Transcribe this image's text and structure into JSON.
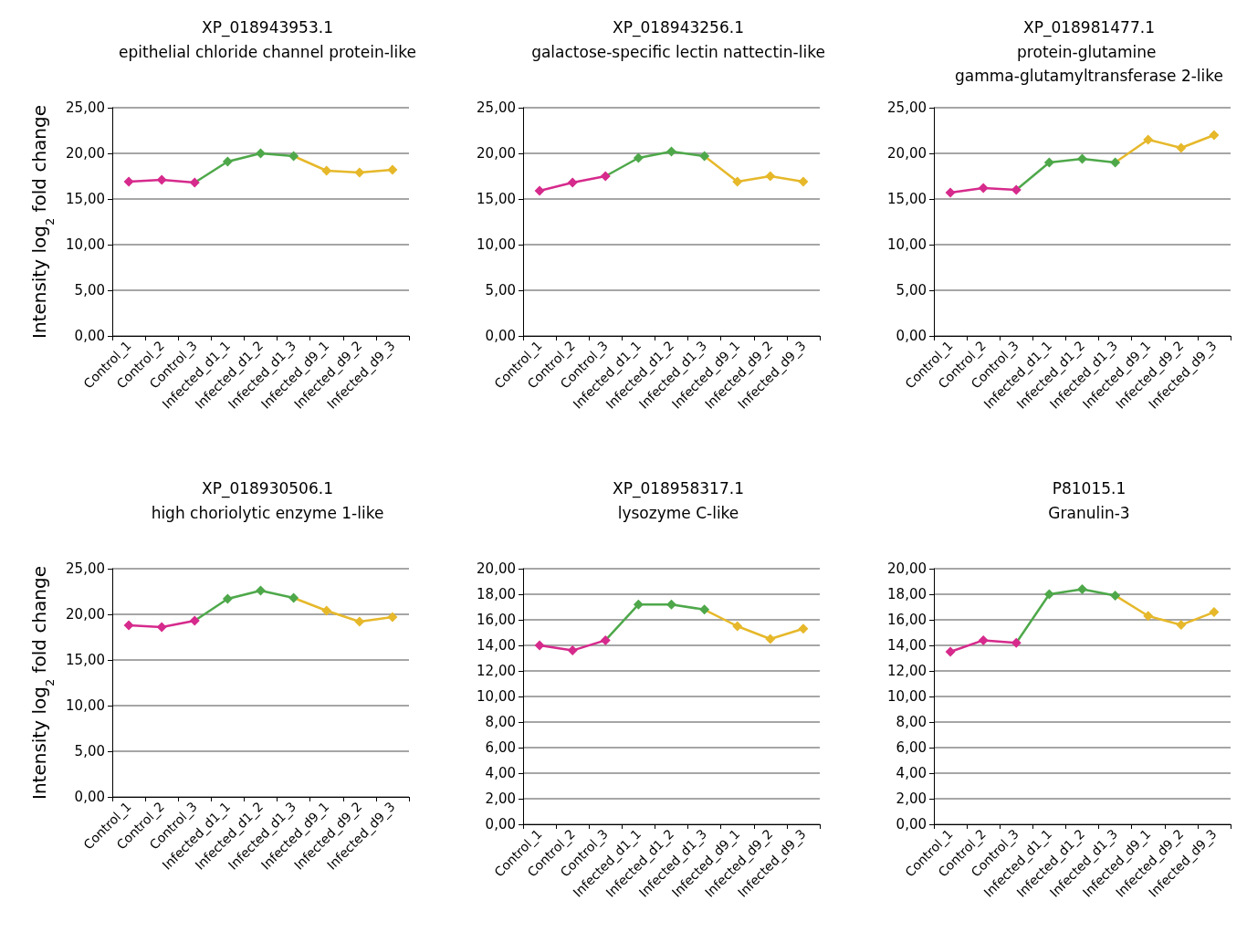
{
  "chart_data": [
    {
      "type": "line",
      "title": "XP_018943953.1",
      "subtitle": "epithelial chloride channel protein-like",
      "ylabel": "Intensity log$_{2}$ fold change",
      "categories": [
        "Control_1",
        "Control_2",
        "Control_3",
        "Infected_d1_1",
        "Infected_d1_2",
        "Infected_d1_3",
        "Infected_d9_1",
        "Infected_d9_2",
        "Infected_d9_3"
      ],
      "ylim": [
        0,
        25
      ],
      "yticks": [
        {
          "value": 0,
          "label": "0,00"
        },
        {
          "value": 5,
          "label": "5,00"
        },
        {
          "value": 10,
          "label": "10,00"
        },
        {
          "value": 15,
          "label": "15,00"
        },
        {
          "value": 20,
          "label": "20,00"
        },
        {
          "value": 25,
          "label": "25,00"
        }
      ],
      "grid": "y",
      "marker": "diamond",
      "line_style": "solid",
      "values": [
        16.9,
        17.1,
        16.8,
        19.1,
        20.0,
        19.7,
        18.1,
        17.9,
        18.2
      ],
      "colors": [
        "#d62a8c",
        "#d62a8c",
        "#d62a8c",
        "#4ea84a",
        "#4ea84a",
        "#4ea84a",
        "#e6b82a",
        "#e6b82a",
        "#e6b82a"
      ]
    },
    {
      "type": "line",
      "title": "XP_018943256.1",
      "subtitle": "galactose-specific lectin nattectin-like",
      "categories": [
        "Control_1",
        "Control_2",
        "Control_3",
        "Infected_d1_1",
        "Infected_d1_2",
        "Infected_d1_3",
        "Infected_d9_1",
        "Infected_d9_2",
        "Infected_d9_3"
      ],
      "ylim": [
        0,
        25
      ],
      "yticks": [
        {
          "value": 0,
          "label": "0,00"
        },
        {
          "value": 5,
          "label": "5,00"
        },
        {
          "value": 10,
          "label": "10,00"
        },
        {
          "value": 15,
          "label": "15,00"
        },
        {
          "value": 20,
          "label": "20,00"
        },
        {
          "value": 25,
          "label": "25,00"
        }
      ],
      "grid": "y",
      "marker": "diamond",
      "line_style": "solid",
      "values": [
        15.9,
        16.8,
        17.5,
        19.5,
        20.2,
        19.7,
        16.9,
        17.5,
        16.9
      ],
      "colors": [
        "#d62a8c",
        "#d62a8c",
        "#d62a8c",
        "#4ea84a",
        "#4ea84a",
        "#4ea84a",
        "#e6b82a",
        "#e6b82a",
        "#e6b82a"
      ]
    },
    {
      "type": "line",
      "title": "XP_018981477.1",
      "subtitle": "protein-glutamine gamma-glutamyltransferase 2-like",
      "categories": [
        "Control_1",
        "Control_2",
        "Control_3",
        "Infected_d1_1",
        "Infected_d1_2",
        "Infected_d1_3",
        "Infected_d9_1",
        "Infected_d9_2",
        "Infected_d9_3"
      ],
      "ylim": [
        0,
        25
      ],
      "yticks": [
        {
          "value": 0,
          "label": "0,00"
        },
        {
          "value": 5,
          "label": "5,00"
        },
        {
          "value": 10,
          "label": "10,00"
        },
        {
          "value": 15,
          "label": "15,00"
        },
        {
          "value": 20,
          "label": "20,00"
        },
        {
          "value": 25,
          "label": "25,00"
        }
      ],
      "grid": "y",
      "marker": "diamond",
      "line_style": "solid",
      "values": [
        15.7,
        16.2,
        16.0,
        19.0,
        19.4,
        19.0,
        21.5,
        20.6,
        22.0
      ],
      "colors": [
        "#d62a8c",
        "#d62a8c",
        "#d62a8c",
        "#4ea84a",
        "#4ea84a",
        "#4ea84a",
        "#e6b82a",
        "#e6b82a",
        "#e6b82a"
      ]
    },
    {
      "type": "line",
      "title": "XP_018930506.1",
      "subtitle": "high choriolytic enzyme 1-like",
      "ylabel": "Intensity log$_{2}$ fold change",
      "categories": [
        "Control_1",
        "Control_2",
        "Control_3",
        "Infected_d1_1",
        "Infected_d1_2",
        "Infected_d1_3",
        "Infected_d9_1",
        "Infected_d9_2",
        "Infected_d9_3"
      ],
      "ylim": [
        0,
        25
      ],
      "yticks": [
        {
          "value": 0,
          "label": "0,00"
        },
        {
          "value": 5,
          "label": "5,00"
        },
        {
          "value": 10,
          "label": "10,00"
        },
        {
          "value": 15,
          "label": "15,00"
        },
        {
          "value": 20,
          "label": "20,00"
        },
        {
          "value": 25,
          "label": "25,00"
        }
      ],
      "grid": "y",
      "marker": "diamond",
      "line_style": "solid",
      "values": [
        18.8,
        18.6,
        19.3,
        21.7,
        22.6,
        21.8,
        20.4,
        19.2,
        19.7
      ],
      "colors": [
        "#d62a8c",
        "#d62a8c",
        "#d62a8c",
        "#4ea84a",
        "#4ea84a",
        "#4ea84a",
        "#e6b82a",
        "#e6b82a",
        "#e6b82a"
      ]
    },
    {
      "type": "line",
      "title": "XP_018958317.1",
      "subtitle": "lysozyme C-like",
      "categories": [
        "Control_1",
        "Control_2",
        "Control_3",
        "Infected_d1_1",
        "Infected_d1_2",
        "Infected_d1_3",
        "Infected_d9_1",
        "Infected_d9_2",
        "Infected_d9_3"
      ],
      "ylim": [
        0,
        20
      ],
      "yticks": [
        {
          "value": 0,
          "label": "0,00"
        },
        {
          "value": 2,
          "label": "2,00"
        },
        {
          "value": 4,
          "label": "4,00"
        },
        {
          "value": 6,
          "label": "6,00"
        },
        {
          "value": 8,
          "label": "8,00"
        },
        {
          "value": 10,
          "label": "10,00"
        },
        {
          "value": 12,
          "label": "12,00"
        },
        {
          "value": 14,
          "label": "14,00"
        },
        {
          "value": 16,
          "label": "16,00"
        },
        {
          "value": 18,
          "label": "18,00"
        },
        {
          "value": 20,
          "label": "20,00"
        }
      ],
      "grid": "y",
      "marker": "diamond",
      "line_style": "solid",
      "values": [
        14.0,
        13.6,
        14.4,
        17.2,
        17.2,
        16.8,
        15.5,
        14.5,
        15.3
      ],
      "colors": [
        "#d62a8c",
        "#d62a8c",
        "#d62a8c",
        "#4ea84a",
        "#4ea84a",
        "#4ea84a",
        "#e6b82a",
        "#e6b82a",
        "#e6b82a"
      ]
    },
    {
      "type": "line",
      "title": "P81015.1",
      "subtitle": "Granulin-3",
      "categories": [
        "Control_1",
        "Control_2",
        "Control_3",
        "Infected_d1_1",
        "Infected_d1_2",
        "Infected_d1_3",
        "Infected_d9_1",
        "Infected_d9_2",
        "Infected_d9_3"
      ],
      "ylim": [
        0,
        20
      ],
      "yticks": [
        {
          "value": 0,
          "label": "0,00"
        },
        {
          "value": 2,
          "label": "2,00"
        },
        {
          "value": 4,
          "label": "4,00"
        },
        {
          "value": 6,
          "label": "6,00"
        },
        {
          "value": 8,
          "label": "8,00"
        },
        {
          "value": 10,
          "label": "10,00"
        },
        {
          "value": 12,
          "label": "12,00"
        },
        {
          "value": 14,
          "label": "14,00"
        },
        {
          "value": 16,
          "label": "16,00"
        },
        {
          "value": 18,
          "label": "18,00"
        },
        {
          "value": 20,
          "label": "20,00"
        }
      ],
      "grid": "y",
      "marker": "diamond",
      "line_style": "solid",
      "values": [
        13.5,
        14.4,
        14.2,
        18.0,
        18.4,
        17.9,
        16.3,
        15.6,
        16.6
      ],
      "colors": [
        "#d62a8c",
        "#d62a8c",
        "#d62a8c",
        "#4ea84a",
        "#4ea84a",
        "#4ea84a",
        "#e6b82a",
        "#e6b82a",
        "#e6b82a"
      ]
    }
  ]
}
